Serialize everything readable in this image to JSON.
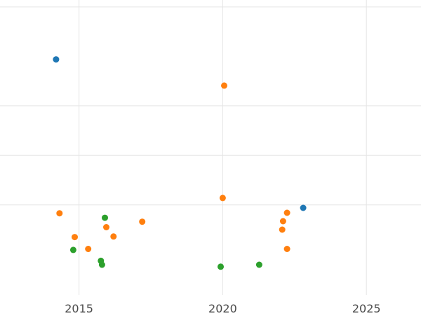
{
  "figure": {
    "background": "#ffffff",
    "gridline_color": "#e5e5e5",
    "tick_label_color": "#4a4a4a"
  },
  "chart_data": {
    "type": "scatter",
    "title": "",
    "xlabel": "",
    "ylabel": "",
    "legend": "none",
    "grid": "on",
    "xlim": [
      2012.25,
      2026.9
    ],
    "ylim": [
      0.18,
      6.14
    ],
    "x_ticks": [
      2015,
      2020,
      2025
    ],
    "y_gridline_values": [
      2,
      3,
      4,
      6
    ],
    "x_gridline_values": [
      2015,
      2020,
      2025
    ],
    "marker_radius": 4.5,
    "series": [
      {
        "name": "blue",
        "color": "#1f77b4",
        "points": [
          {
            "x": 2014.2,
            "y": 4.94
          },
          {
            "x": 2022.8,
            "y": 1.94
          }
        ]
      },
      {
        "name": "orange",
        "color": "#ff7f0e",
        "points": [
          {
            "x": 2014.32,
            "y": 1.83
          },
          {
            "x": 2014.85,
            "y": 1.35
          },
          {
            "x": 2015.32,
            "y": 1.11
          },
          {
            "x": 2015.95,
            "y": 1.55
          },
          {
            "x": 2016.2,
            "y": 1.36
          },
          {
            "x": 2017.2,
            "y": 1.66
          },
          {
            "x": 2020.0,
            "y": 2.14
          },
          {
            "x": 2020.05,
            "y": 4.41
          },
          {
            "x": 2022.24,
            "y": 1.84
          },
          {
            "x": 2022.1,
            "y": 1.67
          },
          {
            "x": 2022.07,
            "y": 1.5
          },
          {
            "x": 2022.24,
            "y": 1.11
          }
        ]
      },
      {
        "name": "green",
        "color": "#2ca02c",
        "points": [
          {
            "x": 2015.9,
            "y": 1.74
          },
          {
            "x": 2014.8,
            "y": 1.09
          },
          {
            "x": 2015.76,
            "y": 0.87
          },
          {
            "x": 2015.8,
            "y": 0.79
          },
          {
            "x": 2019.93,
            "y": 0.75
          },
          {
            "x": 2021.27,
            "y": 0.79
          }
        ]
      }
    ]
  }
}
